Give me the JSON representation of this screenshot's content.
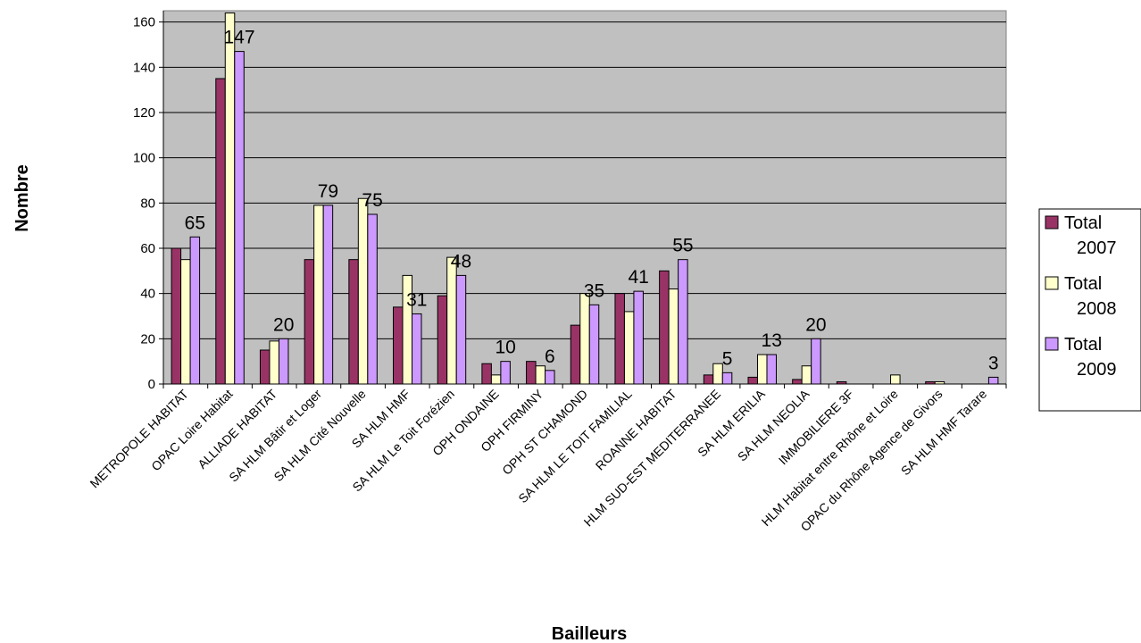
{
  "chart_data": {
    "type": "bar",
    "xlabel": "Bailleurs",
    "ylabel": "Nombre",
    "ylim": [
      0,
      165
    ],
    "yticks": [
      0,
      20,
      40,
      60,
      80,
      100,
      120,
      140,
      160
    ],
    "grid": true,
    "legend_position": "right",
    "categories": [
      "METROPOLE HABITAT",
      "OPAC Loire Habitat",
      "ALLIADE HABITAT",
      "SA HLM Bâtir et Loger",
      "SA HLM Cité Nouvelle",
      "SA HLM HMF",
      "SA HLM Le Toit Forézien",
      "OPH ONDAINE",
      "OPH FIRMINY",
      "OPH ST CHAMOND",
      "SA HLM LE TOIT FAMILIAL",
      "ROANNE HABITAT",
      "HLM SUD-EST MEDITERRANEE",
      "SA HLM ERILIA",
      "SA HLM NEOLIA",
      "IMMOBILIERE 3F",
      "HLM Habitat entre Rhône et Loire",
      "OPAC du Rhône Agence de Givors",
      "SA HLM HMF Tarare"
    ],
    "series": [
      {
        "name": "Total 2007",
        "name_lines": [
          "Total",
          "2007"
        ],
        "color": "#993366",
        "values": [
          60,
          135,
          15,
          55,
          55,
          34,
          39,
          9,
          10,
          26,
          40,
          50,
          4,
          3,
          2,
          1,
          0,
          1,
          0
        ]
      },
      {
        "name": "Total 2008",
        "name_lines": [
          "Total",
          "2008"
        ],
        "color": "#FFFFCC",
        "values": [
          55,
          164,
          19,
          79,
          82,
          48,
          56,
          4,
          8,
          40,
          32,
          42,
          9,
          13,
          8,
          0,
          4,
          1,
          0
        ]
      },
      {
        "name": "Total 2009",
        "name_lines": [
          "Total",
          "2009"
        ],
        "color": "#CC99FF",
        "values": [
          65,
          147,
          20,
          79,
          75,
          31,
          48,
          10,
          6,
          35,
          41,
          55,
          5,
          13,
          20,
          0,
          0,
          0,
          3
        ]
      }
    ],
    "data_labels": [
      {
        "category_index": 0,
        "text": "65"
      },
      {
        "category_index": 1,
        "text": "147"
      },
      {
        "category_index": 2,
        "text": "20"
      },
      {
        "category_index": 3,
        "text": "79"
      },
      {
        "category_index": 4,
        "text": "75"
      },
      {
        "category_index": 5,
        "text": "31"
      },
      {
        "category_index": 6,
        "text": "48"
      },
      {
        "category_index": 7,
        "text": "10"
      },
      {
        "category_index": 8,
        "text": "6"
      },
      {
        "category_index": 9,
        "text": "35"
      },
      {
        "category_index": 10,
        "text": "41"
      },
      {
        "category_index": 11,
        "text": "55"
      },
      {
        "category_index": 12,
        "text": "5"
      },
      {
        "category_index": 13,
        "text": "13"
      },
      {
        "category_index": 14,
        "text": "20"
      },
      {
        "category_index": 18,
        "text": "3"
      }
    ]
  }
}
